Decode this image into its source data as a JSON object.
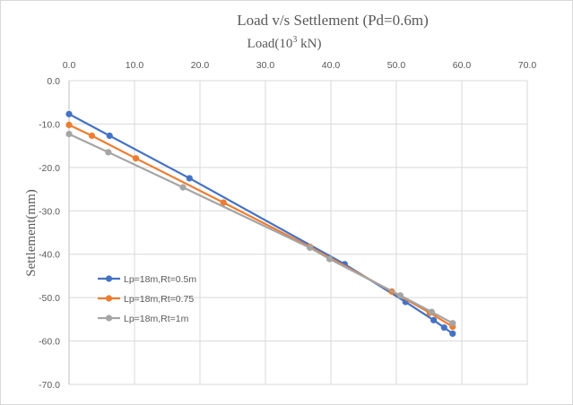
{
  "chart_data": {
    "type": "line",
    "title": "Load v/s Settlement (Pd=0.6m)",
    "xlabel": "Load(10",
    "xlabel_sup": "3",
    "xlabel_unit": " kN)",
    "ylabel": "Settlement(mm)",
    "xlim": [
      0,
      70
    ],
    "ylim": [
      -70,
      0
    ],
    "x_ticks": [
      0,
      10,
      20,
      30,
      40,
      50,
      60,
      70
    ],
    "y_ticks": [
      0,
      -10,
      -20,
      -30,
      -40,
      -50,
      -60,
      -70
    ],
    "x_tick_labels": [
      "0.0",
      "10.0",
      "20.0",
      "30.0",
      "40.0",
      "50.0",
      "60.0",
      "70.0"
    ],
    "y_tick_labels": [
      "0.0",
      "-10.0",
      "-20.0",
      "-30.0",
      "-40.0",
      "-50.0",
      "-60.0",
      "-70.0"
    ],
    "grid": "horizontal-and-vertical",
    "x_axis_position": "top",
    "legend_position": "lower-left",
    "series": [
      {
        "name": "Lp=18m,Rt=0.5m",
        "color": "#4472c4",
        "x": [
          0.0,
          6.2,
          18.4,
          42.1,
          51.4,
          55.7,
          57.3,
          58.6
        ],
        "y": [
          -7.7,
          -12.7,
          -22.5,
          -42.3,
          -51.0,
          -55.2,
          -56.9,
          -58.3
        ]
      },
      {
        "name": "Lp=18m,Rt=0.75",
        "color": "#ed7d31",
        "x": [
          0.0,
          3.5,
          10.2,
          23.6,
          36.8,
          49.3,
          55.1,
          58.6
        ],
        "y": [
          -10.2,
          -12.7,
          -17.9,
          -28.1,
          -38.3,
          -48.6,
          -53.5,
          -56.7
        ]
      },
      {
        "name": "Lp=18m,Rt=1m",
        "color": "#a5a5a5",
        "x": [
          0.0,
          6.0,
          17.4,
          36.8,
          39.8,
          50.6,
          55.4,
          58.6
        ],
        "y": [
          -12.3,
          -16.5,
          -24.6,
          -38.5,
          -41.1,
          -49.5,
          -53.3,
          -55.9
        ]
      }
    ]
  }
}
